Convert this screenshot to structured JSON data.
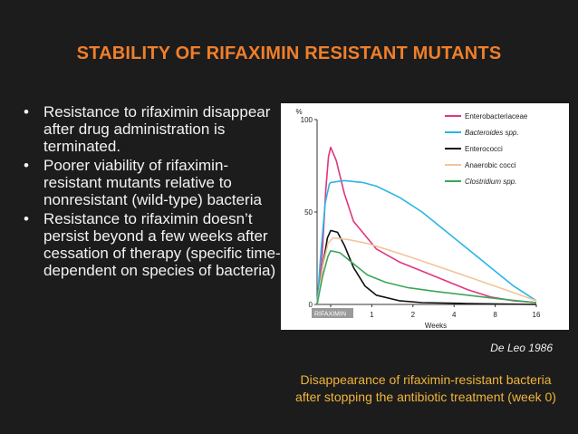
{
  "slide": {
    "title": "STABILITY OF RIFAXIMIN RESISTANT MUTANTS",
    "bullets": [
      "Resistance to rifaximin disappear after drug administration is terminated.",
      "Poorer viability of rifaximin-resistant mutants relative to nonresistant (wild-type) bacteria",
      "Resistance to rifaximin doesn’t persist beyond a few weeks after cessation of therapy (specific time-dependent on species of bacteria)"
    ],
    "citation": "De Leo 1986",
    "caption": "Disappearance of rifaximin-resistant bacteria after stopping the antibiotic treatment (week 0)"
  },
  "chart_data": {
    "type": "line",
    "title": "",
    "xlabel": "Weeks",
    "ylabel": "%",
    "x_ticks": [
      "0",
      "1",
      "2",
      "4",
      "8",
      "16"
    ],
    "y_ticks": [
      "0",
      "50",
      "100"
    ],
    "ylim": [
      0,
      100
    ],
    "marker_label": "RIFAXIMIN",
    "legend_position": "top-right",
    "grid": false,
    "series": [
      {
        "name": "Enterobacteriaceae",
        "italic": false,
        "color": "#e0357f",
        "points": [
          [
            -0.5,
            0
          ],
          [
            -0.32,
            25
          ],
          [
            -0.18,
            62
          ],
          [
            -0.08,
            80
          ],
          [
            0,
            85
          ],
          [
            0.12,
            78
          ],
          [
            0.3,
            60
          ],
          [
            0.5,
            45
          ],
          [
            1,
            30
          ],
          [
            1.5,
            23
          ],
          [
            2,
            18
          ],
          [
            2.5,
            13
          ],
          [
            3,
            8
          ],
          [
            3.5,
            4
          ],
          [
            4,
            2
          ],
          [
            4.5,
            1
          ]
        ]
      },
      {
        "name": "Bacteroides spp.",
        "italic": true,
        "color": "#29b6e6",
        "points": [
          [
            -0.5,
            0
          ],
          [
            -0.35,
            30
          ],
          [
            -0.2,
            55
          ],
          [
            -0.05,
            65
          ],
          [
            0,
            66
          ],
          [
            0.3,
            67
          ],
          [
            0.7,
            66
          ],
          [
            1,
            64
          ],
          [
            1.5,
            58
          ],
          [
            2,
            50
          ],
          [
            2.5,
            40
          ],
          [
            3,
            30
          ],
          [
            3.5,
            20
          ],
          [
            4,
            10
          ],
          [
            4.5,
            2
          ]
        ]
      },
      {
        "name": "Enterococci",
        "italic": false,
        "color": "#111111",
        "points": [
          [
            -0.5,
            0
          ],
          [
            -0.3,
            20
          ],
          [
            -0.12,
            36
          ],
          [
            0,
            40
          ],
          [
            0.15,
            39
          ],
          [
            0.3,
            32
          ],
          [
            0.5,
            20
          ],
          [
            0.75,
            10
          ],
          [
            1,
            5
          ],
          [
            1.5,
            2
          ],
          [
            2,
            1
          ],
          [
            3,
            0.5
          ],
          [
            4.5,
            0
          ]
        ]
      },
      {
        "name": "Anaerobic cocci",
        "italic": false,
        "color": "#f3c49a",
        "points": [
          [
            -0.5,
            0
          ],
          [
            -0.3,
            20
          ],
          [
            -0.1,
            33
          ],
          [
            0.05,
            36
          ],
          [
            0.4,
            35
          ],
          [
            0.8,
            33
          ],
          [
            1.2,
            30
          ],
          [
            1.7,
            26
          ],
          [
            2.3,
            21
          ],
          [
            3,
            15
          ],
          [
            3.7,
            9
          ],
          [
            4.5,
            2
          ]
        ]
      },
      {
        "name": "Clostridium spp.",
        "italic": true,
        "color": "#3aa757",
        "points": [
          [
            -0.5,
            0
          ],
          [
            -0.3,
            15
          ],
          [
            -0.1,
            26
          ],
          [
            0,
            29
          ],
          [
            0.2,
            28
          ],
          [
            0.5,
            22
          ],
          [
            0.8,
            16
          ],
          [
            1.2,
            12
          ],
          [
            1.7,
            9
          ],
          [
            2.3,
            7
          ],
          [
            3,
            5
          ],
          [
            3.7,
            3
          ],
          [
            4.5,
            1
          ]
        ]
      }
    ]
  }
}
